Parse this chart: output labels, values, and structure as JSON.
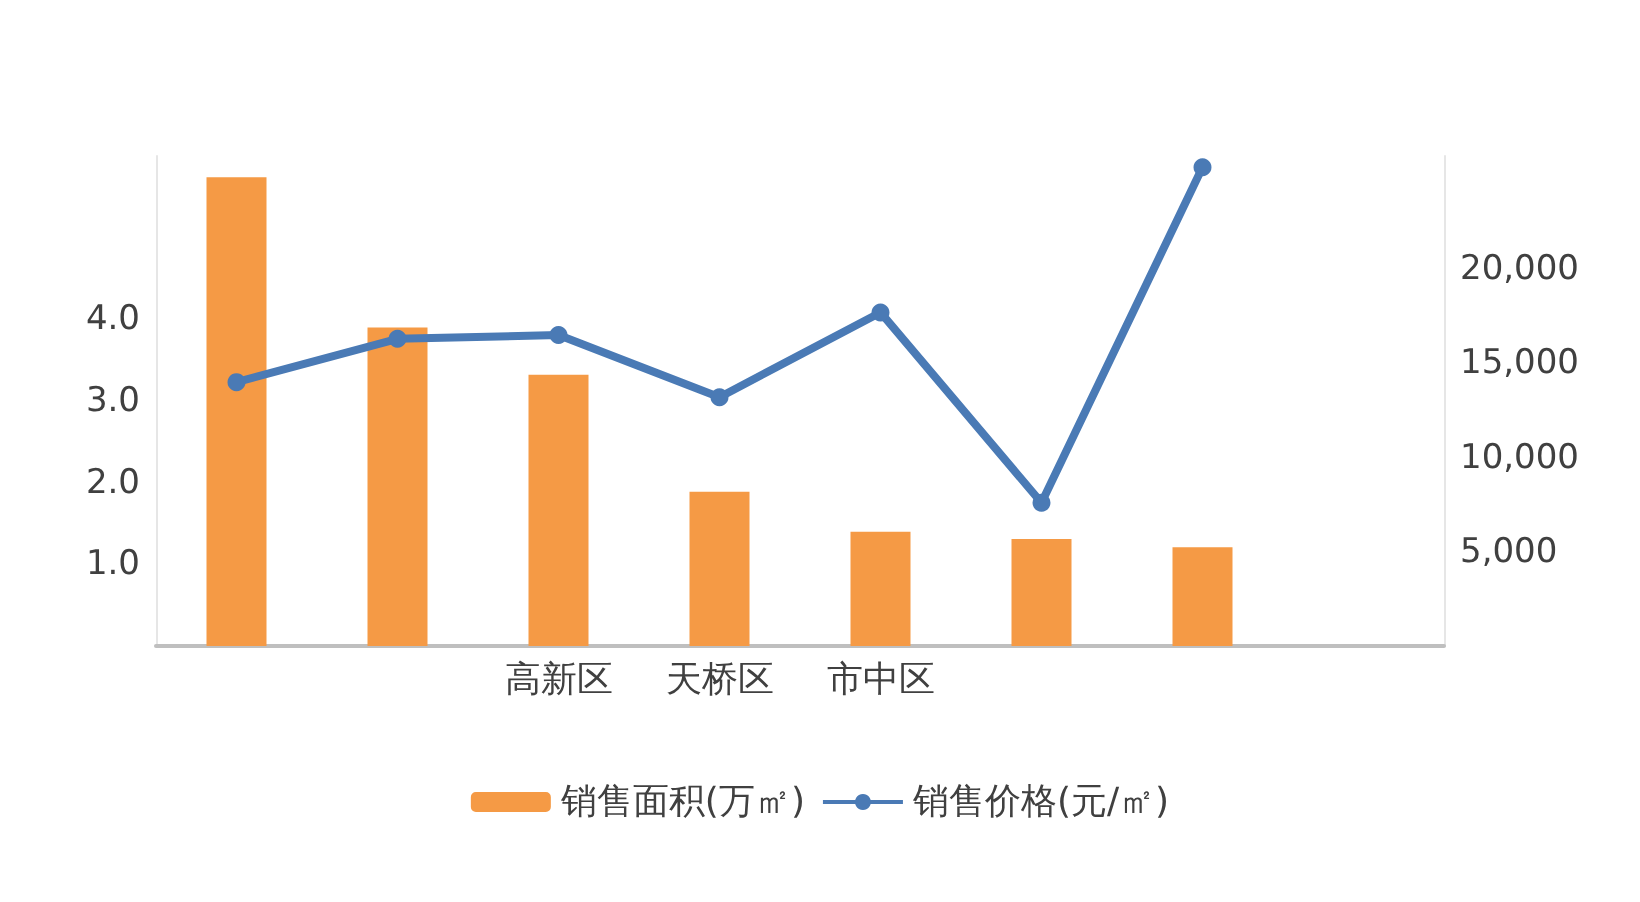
{
  "chart_data": {
    "type": "bar",
    "categories": [
      null,
      null,
      "高新区",
      "天桥区",
      "市中区",
      null,
      null,
      null
    ],
    "series": [
      {
        "name": "销售面积(万㎡)",
        "color": "#f59a45",
        "values": [
          5.74,
          3.9,
          3.32,
          1.89,
          1.4,
          1.31,
          1.21,
          null
        ]
      },
      {
        "name": "销售价格(元/㎡)",
        "type": "line",
        "axis": "y2",
        "color": "#4a7ab5",
        "values": [
          14000,
          16300,
          16500,
          13200,
          17700,
          7600,
          25400,
          null
        ]
      }
    ],
    "ylim": [
      0,
      6
    ],
    "yticks": [
      {
        "value": 1,
        "label": "1.0"
      },
      {
        "value": 2,
        "label": "2.0"
      },
      {
        "value": 3,
        "label": "3.0"
      },
      {
        "value": 4,
        "label": "4.0"
      }
    ],
    "y2lim": [
      0,
      26000
    ],
    "y2ticks": [
      {
        "value": 5000,
        "label": "5,000"
      },
      {
        "value": 10000,
        "label": "10,000"
      },
      {
        "value": 15000,
        "label": "15,000"
      },
      {
        "value": 20000,
        "label": "20,000"
      }
    ],
    "grid": false,
    "legend": "bottom",
    "marker": "circle"
  }
}
